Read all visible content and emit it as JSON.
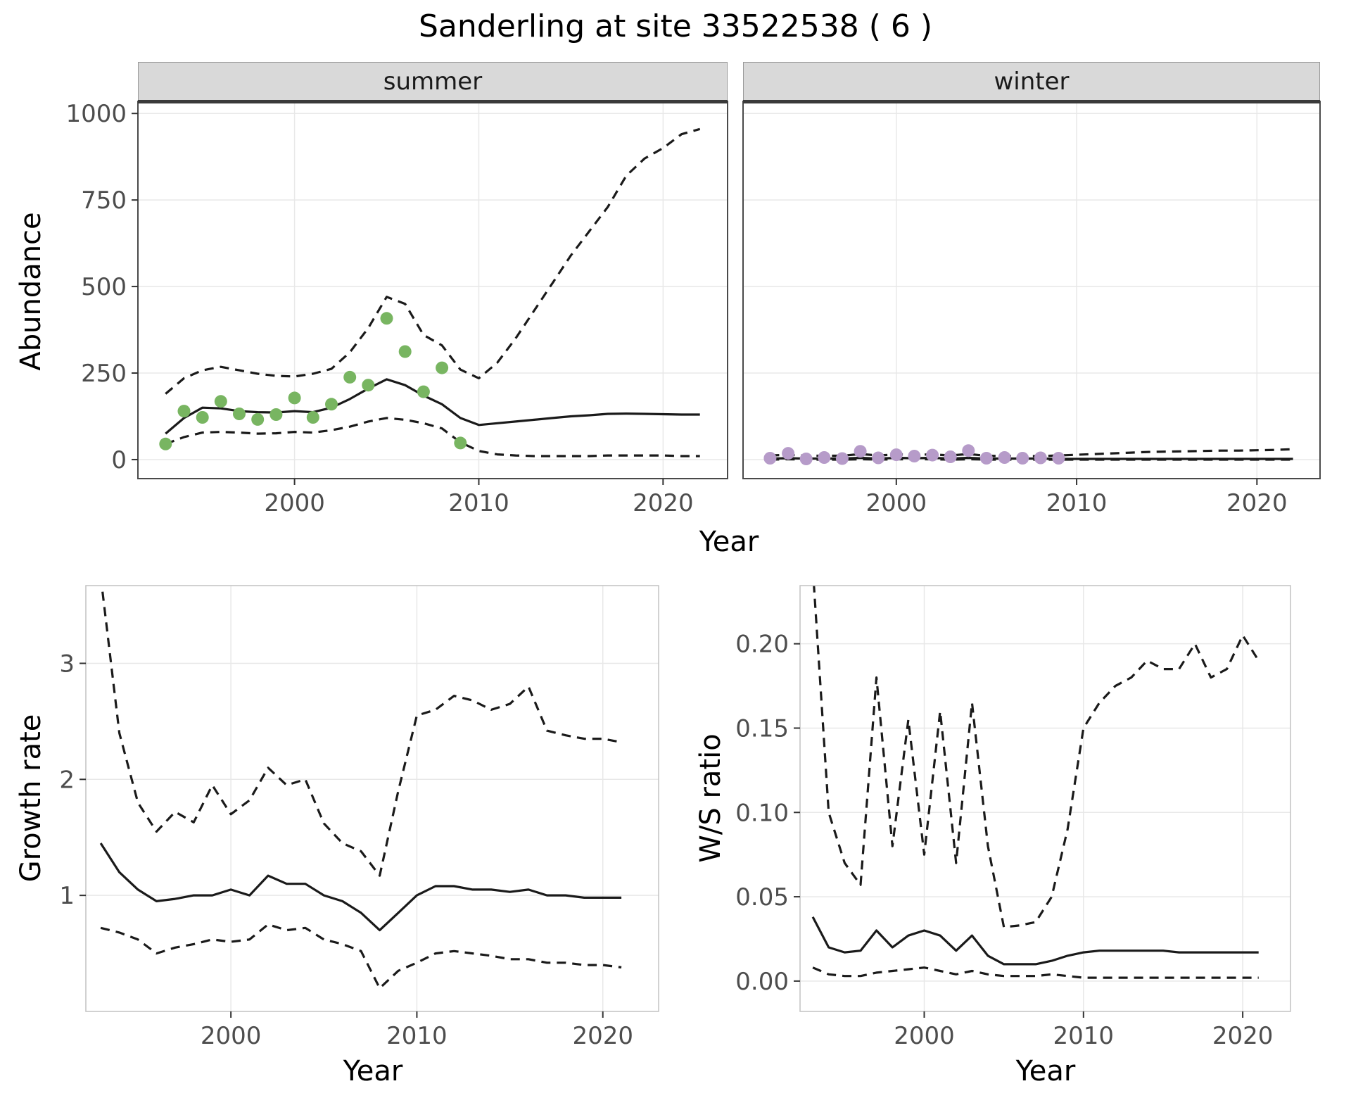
{
  "title": "Sanderling at site 33522538 ( 6 )",
  "colors": {
    "line": "#1a1a1a",
    "grid": "#e8e8e8",
    "strip_bg": "#d9d9d9",
    "strip_underline": "#3a3a3a",
    "tick_text": "#4d4d4d",
    "axis_text": "#000000",
    "summer_point": "#78b561",
    "winter_point": "#b69bc9"
  },
  "chart_data": [
    {
      "id": "abundance_summer",
      "type": "line",
      "facet_label": "summer",
      "xlabel": "Year",
      "ylabel": "Abundance",
      "xlim": [
        1991.5,
        2023.5
      ],
      "ylim": [
        -55,
        1035
      ],
      "xticks": [
        2000,
        2010,
        2020
      ],
      "xtick_labels": [
        "2000",
        "2010",
        "2020"
      ],
      "yticks": [
        0,
        250,
        500,
        750,
        1000
      ],
      "ytick_labels": [
        "0",
        "250",
        "500",
        "750",
        "1000"
      ],
      "x": [
        1993,
        1994,
        1995,
        1996,
        1997,
        1998,
        1999,
        2000,
        2001,
        2002,
        2003,
        2004,
        2005,
        2006,
        2007,
        2008,
        2009,
        2010,
        2011,
        2012,
        2013,
        2014,
        2015,
        2016,
        2017,
        2018,
        2019,
        2020,
        2021,
        2022
      ],
      "series": [
        {
          "name": "fit",
          "style": "solid",
          "values": [
            75,
            120,
            150,
            148,
            140,
            137,
            136,
            140,
            137,
            150,
            175,
            205,
            232,
            215,
            185,
            160,
            120,
            100,
            105,
            110,
            115,
            120,
            125,
            128,
            132,
            133,
            132,
            131,
            130,
            130
          ]
        },
        {
          "name": "upper_ci",
          "style": "dashed",
          "values": [
            190,
            235,
            258,
            268,
            258,
            248,
            242,
            240,
            248,
            262,
            310,
            380,
            470,
            450,
            360,
            330,
            260,
            235,
            280,
            350,
            430,
            510,
            590,
            660,
            730,
            820,
            870,
            900,
            940,
            955
          ]
        },
        {
          "name": "lower_ci",
          "style": "dashed",
          "values": [
            45,
            65,
            78,
            80,
            78,
            75,
            76,
            80,
            78,
            85,
            95,
            110,
            120,
            115,
            105,
            90,
            50,
            25,
            15,
            12,
            10,
            10,
            10,
            10,
            12,
            12,
            12,
            12,
            10,
            10
          ]
        }
      ],
      "points": {
        "name": "observed",
        "x": [
          1993,
          1994,
          1995,
          1996,
          1997,
          1998,
          1999,
          2000,
          2001,
          2002,
          2003,
          2004,
          2005,
          2006,
          2007,
          2008,
          2009
        ],
        "y": [
          45,
          140,
          122,
          168,
          132,
          116,
          130,
          178,
          122,
          160,
          238,
          215,
          408,
          312,
          196,
          265,
          48
        ]
      },
      "point_color": "#78b561"
    },
    {
      "id": "abundance_winter",
      "type": "line",
      "facet_label": "winter",
      "xlabel": "Year",
      "ylabel": "",
      "xlim": [
        1991.5,
        2023.5
      ],
      "ylim": [
        -55,
        1035
      ],
      "xticks": [
        2000,
        2010,
        2020
      ],
      "xtick_labels": [
        "2000",
        "2010",
        "2020"
      ],
      "yticks": [
        0,
        250,
        500,
        750,
        1000
      ],
      "ytick_labels": [
        "0",
        "250",
        "500",
        "750",
        "1000"
      ],
      "x": [
        1993,
        1994,
        1995,
        1996,
        1997,
        1998,
        1999,
        2000,
        2001,
        2002,
        2003,
        2004,
        2005,
        2006,
        2007,
        2008,
        2009,
        2010,
        2011,
        2012,
        2013,
        2014,
        2015,
        2016,
        2017,
        2018,
        2019,
        2020,
        2021,
        2022
      ],
      "series": [
        {
          "name": "fit",
          "style": "solid",
          "values": [
            3,
            4,
            3,
            3,
            3,
            5,
            3,
            5,
            4,
            5,
            3,
            5,
            3,
            3,
            3,
            3,
            2,
            2,
            2,
            2,
            2,
            2,
            2,
            2,
            2,
            2,
            2,
            2,
            2,
            2
          ]
        },
        {
          "name": "upper_ci",
          "style": "dashed",
          "values": [
            12,
            14,
            11,
            11,
            11,
            16,
            12,
            15,
            14,
            15,
            12,
            16,
            11,
            10,
            10,
            10,
            12,
            14,
            16,
            18,
            20,
            22,
            23,
            24,
            25,
            26,
            26,
            27,
            28,
            30
          ]
        },
        {
          "name": "lower_ci",
          "style": "dashed",
          "values": [
            0,
            1,
            0,
            0,
            0,
            1,
            0,
            1,
            1,
            1,
            0,
            1,
            0,
            0,
            0,
            0,
            0,
            0,
            0,
            0,
            0,
            0,
            0,
            0,
            0,
            0,
            0,
            0,
            0,
            0
          ]
        }
      ],
      "points": {
        "name": "observed",
        "x": [
          1993,
          1994,
          1995,
          1996,
          1997,
          1998,
          1999,
          2000,
          2001,
          2002,
          2003,
          2004,
          2005,
          2006,
          2007,
          2008,
          2009
        ],
        "y": [
          4,
          18,
          2,
          6,
          3,
          24,
          5,
          14,
          10,
          13,
          8,
          26,
          4,
          6,
          4,
          5,
          4
        ]
      },
      "point_color": "#b69bc9"
    },
    {
      "id": "growth_rate",
      "type": "line",
      "facet_label": "",
      "xlabel": "Year",
      "ylabel": "Growth rate",
      "xlim": [
        1992.2,
        2023
      ],
      "ylim": [
        0,
        3.67
      ],
      "xticks": [
        2000,
        2010,
        2020
      ],
      "xtick_labels": [
        "2000",
        "2010",
        "2020"
      ],
      "yticks": [
        1,
        2,
        3
      ],
      "ytick_labels": [
        "1",
        "2",
        "3"
      ],
      "x": [
        1993,
        1994,
        1995,
        1996,
        1997,
        1998,
        1999,
        2000,
        2001,
        2002,
        2003,
        2004,
        2005,
        2006,
        2007,
        2008,
        2009,
        2010,
        2011,
        2012,
        2013,
        2014,
        2015,
        2016,
        2017,
        2018,
        2019,
        2020,
        2021
      ],
      "series": [
        {
          "name": "fit",
          "style": "solid",
          "values": [
            1.45,
            1.2,
            1.05,
            0.95,
            0.97,
            1.0,
            1.0,
            1.05,
            1.0,
            1.17,
            1.1,
            1.1,
            1.0,
            0.95,
            0.85,
            0.7,
            0.85,
            1.0,
            1.08,
            1.08,
            1.05,
            1.05,
            1.03,
            1.05,
            1.0,
            1.0,
            0.98,
            0.98,
            0.98
          ]
        },
        {
          "name": "upper_ci",
          "style": "dashed",
          "values": [
            3.75,
            2.4,
            1.8,
            1.55,
            1.72,
            1.63,
            1.95,
            1.7,
            1.82,
            2.1,
            1.95,
            2.0,
            1.62,
            1.45,
            1.38,
            1.17,
            1.9,
            2.55,
            2.6,
            2.72,
            2.68,
            2.6,
            2.65,
            2.8,
            2.42,
            2.38,
            2.35,
            2.35,
            2.32
          ]
        },
        {
          "name": "lower_ci",
          "style": "dashed",
          "values": [
            0.72,
            0.68,
            0.62,
            0.5,
            0.55,
            0.58,
            0.62,
            0.6,
            0.62,
            0.75,
            0.7,
            0.72,
            0.62,
            0.58,
            0.52,
            0.2,
            0.35,
            0.42,
            0.5,
            0.52,
            0.5,
            0.48,
            0.45,
            0.45,
            0.42,
            0.42,
            0.4,
            0.4,
            0.38
          ]
        }
      ],
      "point_color": ""
    },
    {
      "id": "ws_ratio",
      "type": "line",
      "facet_label": "",
      "xlabel": "Year",
      "ylabel": "W/S ratio",
      "xlim": [
        1992.2,
        2023
      ],
      "ylim": [
        -0.018,
        0.2345
      ],
      "xticks": [
        2000,
        2010,
        2020
      ],
      "xtick_labels": [
        "2000",
        "2010",
        "2020"
      ],
      "yticks": [
        0,
        0.05,
        0.1,
        0.15,
        0.2
      ],
      "ytick_labels": [
        "0.00",
        "0.05",
        "0.10",
        "0.15",
        "0.20"
      ],
      "x": [
        1993,
        1994,
        1995,
        1996,
        1997,
        1998,
        1999,
        2000,
        2001,
        2002,
        2003,
        2004,
        2005,
        2006,
        2007,
        2008,
        2009,
        2010,
        2011,
        2012,
        2013,
        2014,
        2015,
        2016,
        2017,
        2018,
        2019,
        2020,
        2021
      ],
      "series": [
        {
          "name": "fit",
          "style": "solid",
          "values": [
            0.038,
            0.02,
            0.017,
            0.018,
            0.03,
            0.02,
            0.027,
            0.03,
            0.027,
            0.018,
            0.027,
            0.015,
            0.01,
            0.01,
            0.01,
            0.012,
            0.015,
            0.017,
            0.018,
            0.018,
            0.018,
            0.018,
            0.018,
            0.017,
            0.017,
            0.017,
            0.017,
            0.017,
            0.017
          ]
        },
        {
          "name": "upper_ci",
          "style": "dashed",
          "values": [
            0.245,
            0.1,
            0.07,
            0.057,
            0.18,
            0.08,
            0.155,
            0.075,
            0.16,
            0.07,
            0.165,
            0.08,
            0.032,
            0.033,
            0.035,
            0.05,
            0.09,
            0.15,
            0.165,
            0.175,
            0.18,
            0.19,
            0.185,
            0.185,
            0.2,
            0.18,
            0.185,
            0.205,
            0.19
          ]
        },
        {
          "name": "lower_ci",
          "style": "dashed",
          "values": [
            0.008,
            0.004,
            0.003,
            0.003,
            0.005,
            0.006,
            0.007,
            0.008,
            0.006,
            0.004,
            0.006,
            0.004,
            0.003,
            0.003,
            0.003,
            0.004,
            0.003,
            0.002,
            0.002,
            0.002,
            0.002,
            0.002,
            0.002,
            0.002,
            0.002,
            0.002,
            0.002,
            0.002,
            0.002
          ]
        }
      ],
      "point_color": ""
    }
  ]
}
